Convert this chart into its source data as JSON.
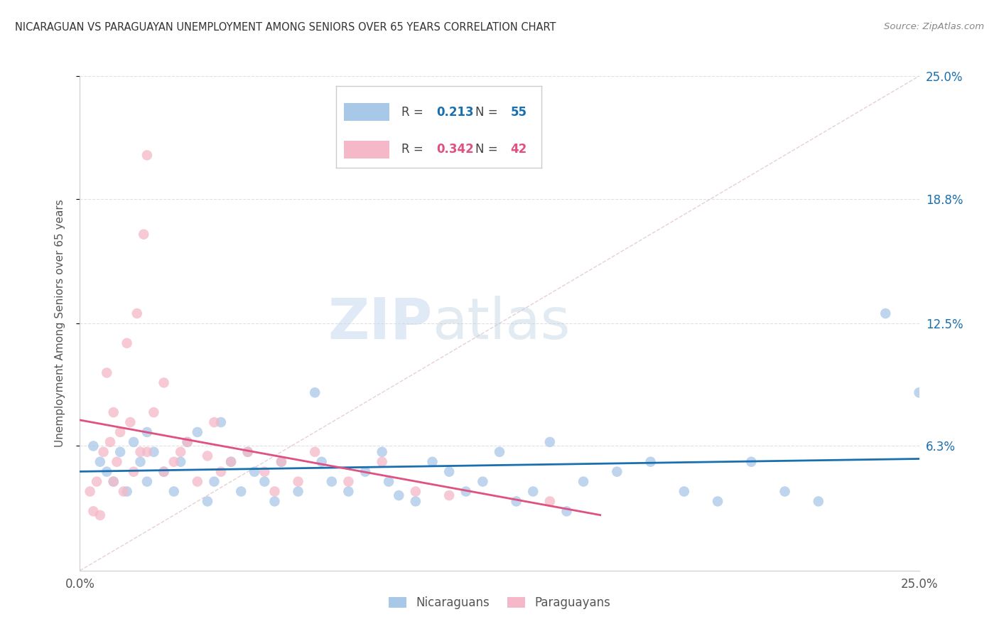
{
  "title": "NICARAGUAN VS PARAGUAYAN UNEMPLOYMENT AMONG SENIORS OVER 65 YEARS CORRELATION CHART",
  "source": "Source: ZipAtlas.com",
  "ylabel": "Unemployment Among Seniors over 65 years",
  "xlim": [
    0,
    0.25
  ],
  "ylim": [
    0,
    0.25
  ],
  "ytick_labels_right": [
    "6.3%",
    "12.5%",
    "18.8%",
    "25.0%"
  ],
  "ytick_vals_right": [
    0.063,
    0.125,
    0.188,
    0.25
  ],
  "legend_blue_r": "0.213",
  "legend_blue_n": "55",
  "legend_pink_r": "0.342",
  "legend_pink_n": "42",
  "legend_label_blue": "Nicaraguans",
  "legend_label_pink": "Paraguayans",
  "blue_color": "#a8c8e8",
  "pink_color": "#f4b8c8",
  "trendline_blue_color": "#1a6faf",
  "trendline_pink_color": "#e05080",
  "nicaraguan_x": [
    0.004,
    0.006,
    0.008,
    0.01,
    0.012,
    0.014,
    0.016,
    0.018,
    0.02,
    0.02,
    0.022,
    0.025,
    0.028,
    0.03,
    0.032,
    0.035,
    0.038,
    0.04,
    0.042,
    0.045,
    0.048,
    0.05,
    0.052,
    0.055,
    0.058,
    0.06,
    0.065,
    0.07,
    0.072,
    0.075,
    0.08,
    0.085,
    0.09,
    0.092,
    0.095,
    0.1,
    0.105,
    0.11,
    0.115,
    0.12,
    0.125,
    0.13,
    0.135,
    0.14,
    0.145,
    0.15,
    0.16,
    0.17,
    0.18,
    0.19,
    0.2,
    0.21,
    0.22,
    0.24,
    0.25
  ],
  "nicaraguan_y": [
    0.063,
    0.055,
    0.05,
    0.045,
    0.06,
    0.04,
    0.065,
    0.055,
    0.07,
    0.045,
    0.06,
    0.05,
    0.04,
    0.055,
    0.065,
    0.07,
    0.035,
    0.045,
    0.075,
    0.055,
    0.04,
    0.06,
    0.05,
    0.045,
    0.035,
    0.055,
    0.04,
    0.09,
    0.055,
    0.045,
    0.04,
    0.05,
    0.06,
    0.045,
    0.038,
    0.035,
    0.055,
    0.05,
    0.04,
    0.045,
    0.06,
    0.035,
    0.04,
    0.065,
    0.03,
    0.045,
    0.05,
    0.055,
    0.04,
    0.035,
    0.055,
    0.04,
    0.035,
    0.13,
    0.09
  ],
  "paraguayan_x": [
    0.003,
    0.004,
    0.005,
    0.006,
    0.007,
    0.008,
    0.009,
    0.01,
    0.01,
    0.011,
    0.012,
    0.013,
    0.014,
    0.015,
    0.016,
    0.017,
    0.018,
    0.019,
    0.02,
    0.02,
    0.022,
    0.025,
    0.025,
    0.028,
    0.03,
    0.032,
    0.035,
    0.038,
    0.04,
    0.042,
    0.045,
    0.05,
    0.055,
    0.058,
    0.06,
    0.065,
    0.07,
    0.08,
    0.09,
    0.1,
    0.11,
    0.14
  ],
  "paraguayan_y": [
    0.04,
    0.03,
    0.045,
    0.028,
    0.06,
    0.1,
    0.065,
    0.08,
    0.045,
    0.055,
    0.07,
    0.04,
    0.115,
    0.075,
    0.05,
    0.13,
    0.06,
    0.17,
    0.21,
    0.06,
    0.08,
    0.05,
    0.095,
    0.055,
    0.06,
    0.065,
    0.045,
    0.058,
    0.075,
    0.05,
    0.055,
    0.06,
    0.05,
    0.04,
    0.055,
    0.045,
    0.06,
    0.045,
    0.055,
    0.04,
    0.038,
    0.035
  ],
  "watermark_zip": "ZIP",
  "watermark_atlas": "atlas",
  "background_color": "#ffffff",
  "grid_color": "#e0e0e0"
}
